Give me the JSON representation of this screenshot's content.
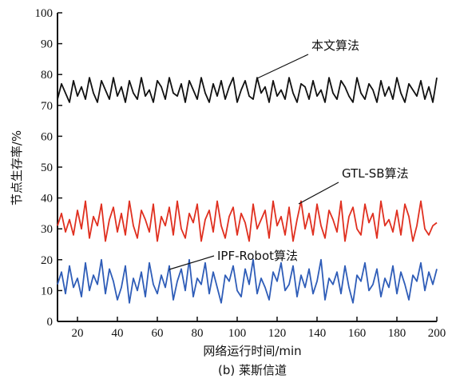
{
  "chart_data": {
    "type": "line",
    "title": "",
    "caption": "(b) 莱斯信道",
    "xlabel": "网络运行时间/min",
    "ylabel": "节点生存率/%",
    "xlim": [
      10,
      200
    ],
    "ylim": [
      0,
      100
    ],
    "xticks": [
      "20",
      "40",
      "60",
      "80",
      "100",
      "120",
      "140",
      "160",
      "180",
      "200"
    ],
    "yticks": [
      "0",
      "10",
      "20",
      "30",
      "40",
      "50",
      "60",
      "70",
      "80",
      "90",
      "100"
    ],
    "grid": false,
    "legend": "none",
    "annotations": [
      {
        "text": "本文算法",
        "series": "本文算法"
      },
      {
        "text": "GTL-SB算法",
        "series": "GTL-SB算法"
      },
      {
        "text": "IPF-Robot算法",
        "series": "IPF-Robot算法"
      }
    ],
    "series": [
      {
        "name": "本文算法",
        "color": "#111111",
        "x": [
          10,
          12,
          14,
          16,
          18,
          20,
          22,
          24,
          26,
          28,
          30,
          32,
          34,
          36,
          38,
          40,
          42,
          44,
          46,
          48,
          50,
          52,
          54,
          56,
          58,
          60,
          62,
          64,
          66,
          68,
          70,
          72,
          74,
          76,
          78,
          80,
          82,
          84,
          86,
          88,
          90,
          92,
          94,
          96,
          98,
          100,
          102,
          104,
          106,
          108,
          110,
          112,
          114,
          116,
          118,
          120,
          122,
          124,
          126,
          128,
          130,
          132,
          134,
          136,
          138,
          140,
          142,
          144,
          146,
          148,
          150,
          152,
          154,
          156,
          158,
          160,
          162,
          164,
          166,
          168,
          170,
          172,
          174,
          176,
          178,
          180,
          182,
          184,
          186,
          188,
          190,
          192,
          194,
          196,
          198,
          200
        ],
        "values": [
          72,
          77,
          74,
          71,
          78,
          73,
          76,
          72,
          79,
          74,
          71,
          78,
          75,
          72,
          79,
          73,
          76,
          71,
          78,
          74,
          72,
          79,
          73,
          75,
          71,
          78,
          76,
          72,
          79,
          74,
          73,
          77,
          71,
          78,
          75,
          72,
          79,
          74,
          71,
          77,
          73,
          78,
          72,
          76,
          79,
          71,
          75,
          78,
          73,
          72,
          79,
          74,
          76,
          71,
          78,
          73,
          75,
          72,
          79,
          74,
          71,
          77,
          76,
          72,
          78,
          73,
          75,
          71,
          79,
          74,
          72,
          78,
          76,
          73,
          71,
          79,
          74,
          72,
          77,
          75,
          71,
          78,
          73,
          76,
          72,
          79,
          74,
          71,
          77,
          75,
          73,
          78,
          72,
          76,
          71,
          79
        ]
      },
      {
        "name": "GTL-SB算法",
        "color": "#e03020",
        "x": [
          10,
          12,
          14,
          16,
          18,
          20,
          22,
          24,
          26,
          28,
          30,
          32,
          34,
          36,
          38,
          40,
          42,
          44,
          46,
          48,
          50,
          52,
          54,
          56,
          58,
          60,
          62,
          64,
          66,
          68,
          70,
          72,
          74,
          76,
          78,
          80,
          82,
          84,
          86,
          88,
          90,
          92,
          94,
          96,
          98,
          100,
          102,
          104,
          106,
          108,
          110,
          112,
          114,
          116,
          118,
          120,
          122,
          124,
          126,
          128,
          130,
          132,
          134,
          136,
          138,
          140,
          142,
          144,
          146,
          148,
          150,
          152,
          154,
          156,
          158,
          160,
          162,
          164,
          166,
          168,
          170,
          172,
          174,
          176,
          178,
          180,
          182,
          184,
          186,
          188,
          190,
          192,
          194,
          196,
          198,
          200
        ],
        "values": [
          31,
          35,
          29,
          33,
          28,
          36,
          30,
          39,
          27,
          34,
          31,
          38,
          26,
          33,
          37,
          29,
          35,
          28,
          39,
          31,
          27,
          36,
          33,
          29,
          38,
          26,
          34,
          31,
          37,
          28,
          39,
          30,
          27,
          35,
          32,
          38,
          26,
          33,
          36,
          29,
          39,
          31,
          27,
          34,
          37,
          28,
          35,
          32,
          26,
          38,
          30,
          33,
          36,
          27,
          39,
          31,
          34,
          28,
          37,
          26,
          33,
          39,
          30,
          35,
          28,
          38,
          31,
          27,
          36,
          33,
          29,
          39,
          26,
          34,
          37,
          30,
          28,
          38,
          32,
          35,
          27,
          39,
          31,
          33,
          29,
          36,
          28,
          38,
          34,
          26,
          31,
          39,
          30,
          28,
          31,
          32
        ]
      },
      {
        "name": "IPF-Robot算法",
        "color": "#2f5db8",
        "x": [
          10,
          12,
          14,
          16,
          18,
          20,
          22,
          24,
          26,
          28,
          30,
          32,
          34,
          36,
          38,
          40,
          42,
          44,
          46,
          48,
          50,
          52,
          54,
          56,
          58,
          60,
          62,
          64,
          66,
          68,
          70,
          72,
          74,
          76,
          78,
          80,
          82,
          84,
          86,
          88,
          90,
          92,
          94,
          96,
          98,
          100,
          102,
          104,
          106,
          108,
          110,
          112,
          114,
          116,
          118,
          120,
          122,
          124,
          126,
          128,
          130,
          132,
          134,
          136,
          138,
          140,
          142,
          144,
          146,
          148,
          150,
          152,
          154,
          156,
          158,
          160,
          162,
          164,
          166,
          168,
          170,
          172,
          174,
          176,
          178,
          180,
          182,
          184,
          186,
          188,
          190,
          192,
          194,
          196,
          198,
          200
        ],
        "values": [
          12,
          16,
          9,
          18,
          11,
          14,
          8,
          19,
          10,
          15,
          12,
          20,
          9,
          17,
          13,
          7,
          11,
          18,
          6,
          14,
          10,
          16,
          8,
          19,
          12,
          9,
          15,
          11,
          18,
          7,
          13,
          17,
          10,
          20,
          8,
          14,
          12,
          19,
          9,
          16,
          11,
          6,
          15,
          13,
          18,
          10,
          8,
          17,
          12,
          20,
          9,
          14,
          11,
          7,
          16,
          13,
          19,
          10,
          12,
          18,
          8,
          15,
          11,
          17,
          9,
          13,
          20,
          7,
          14,
          12,
          16,
          9,
          18,
          11,
          6,
          15,
          13,
          19,
          10,
          12,
          17,
          8,
          14,
          11,
          18,
          9,
          16,
          12,
          7,
          15,
          13,
          19,
          10,
          16,
          12,
          17
        ]
      }
    ]
  }
}
